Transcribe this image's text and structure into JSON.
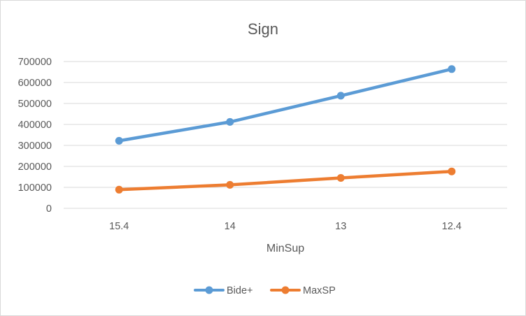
{
  "chart_data": {
    "type": "line",
    "title": "Sign",
    "xlabel": "MinSup",
    "ylabel": "",
    "categories": [
      "15.4",
      "14",
      "13",
      "12.4"
    ],
    "ylim": [
      0,
      700000
    ],
    "yticks": [
      0,
      100000,
      200000,
      300000,
      400000,
      500000,
      600000,
      700000
    ],
    "grid": true,
    "legend_position": "bottom",
    "series": [
      {
        "name": "Bide+",
        "color": "#5b9bd5",
        "values": [
          322000,
          412000,
          537000,
          664000
        ]
      },
      {
        "name": "MaxSP",
        "color": "#ed7d31",
        "values": [
          89000,
          112000,
          145000,
          176000
        ]
      }
    ]
  }
}
